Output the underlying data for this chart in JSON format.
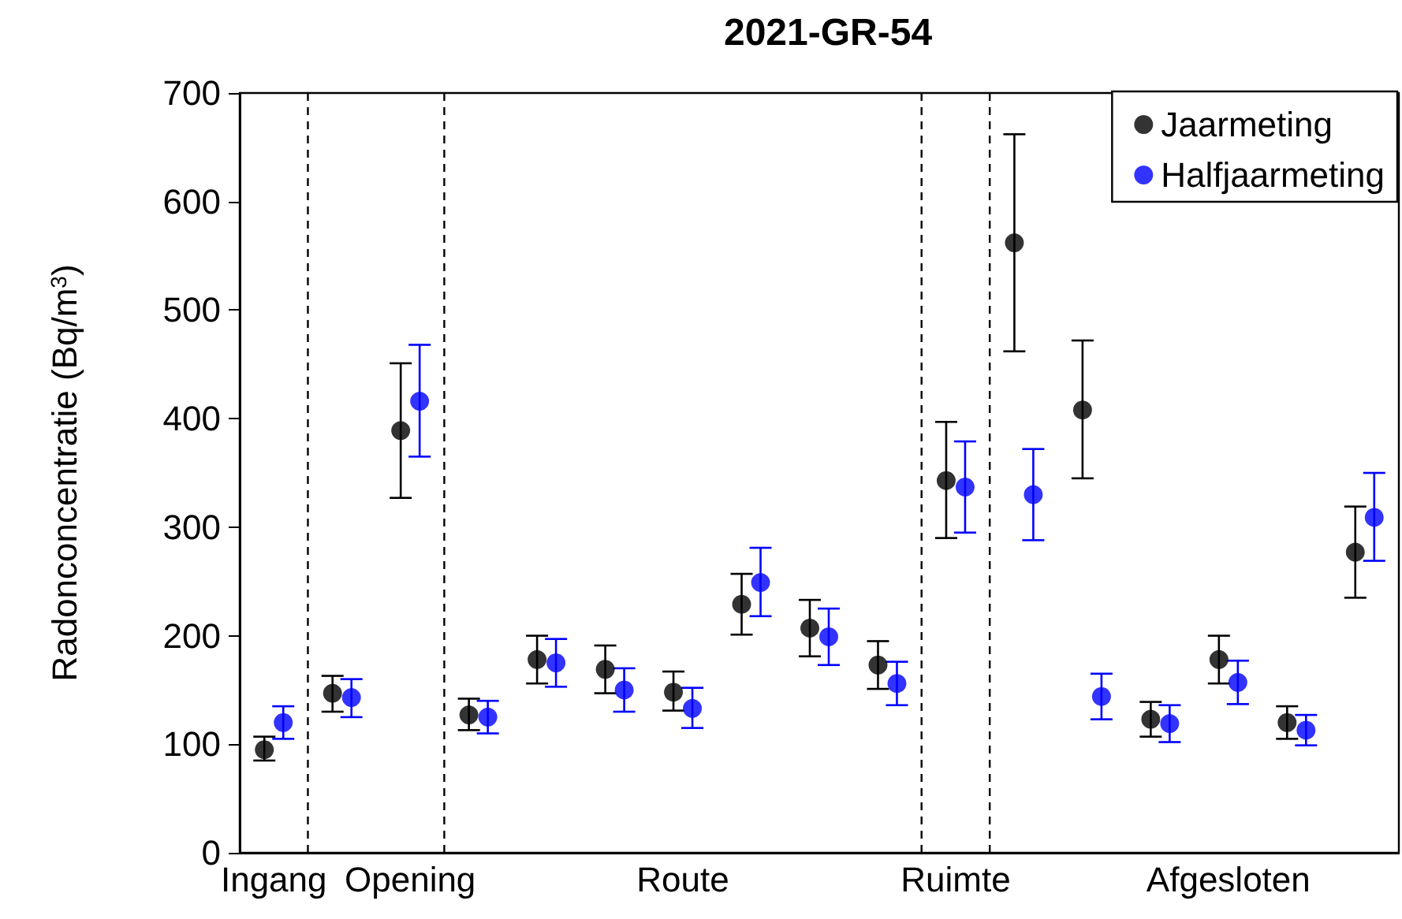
{
  "chart_data": {
    "type": "scatter",
    "title": "2021-GR-54",
    "ylabel": "Radonconcentratie (Bq/m$^{3}$)",
    "categories": [
      "Ingang",
      null,
      "Opening",
      null,
      null,
      null,
      "Route",
      null,
      null,
      null,
      "Ruimte",
      null,
      null,
      null,
      "Afgesloten",
      null,
      null
    ],
    "ylim": [
      0,
      700
    ],
    "yticks": [
      0,
      100,
      200,
      300,
      400,
      500,
      600,
      700
    ],
    "grid": false,
    "legend": "top right",
    "marker": "circle",
    "series": [
      {
        "name": "Jaarmeting",
        "color": "#000000",
        "values": [
          95,
          147,
          389,
          127,
          178,
          169,
          148,
          229,
          207,
          173,
          343,
          562,
          408,
          123,
          178,
          120,
          277
        ],
        "errors": [
          [
            85,
            107
          ],
          [
            130,
            163
          ],
          [
            327,
            451
          ],
          [
            113,
            142
          ],
          [
            156,
            200
          ],
          [
            147,
            191
          ],
          [
            131,
            167
          ],
          [
            201,
            257
          ],
          [
            181,
            233
          ],
          [
            151,
            195
          ],
          [
            290,
            397
          ],
          [
            462,
            662
          ],
          [
            345,
            472
          ],
          [
            107,
            139
          ],
          [
            156,
            200
          ],
          [
            105,
            135
          ],
          [
            235,
            319
          ]
        ]
      },
      {
        "name": "Halfjaarmeting",
        "color": "#0000ff",
        "values": [
          120,
          143,
          416,
          125,
          175,
          150,
          133,
          249,
          199,
          156,
          337,
          330,
          144,
          119,
          157,
          113,
          309
        ],
        "errors": [
          [
            105,
            135
          ],
          [
            125,
            160
          ],
          [
            365,
            468
          ],
          [
            110,
            140
          ],
          [
            153,
            197
          ],
          [
            130,
            170
          ],
          [
            115,
            152
          ],
          [
            218,
            281
          ],
          [
            173,
            225
          ],
          [
            136,
            176
          ],
          [
            295,
            379
          ],
          [
            288,
            372
          ],
          [
            123,
            165
          ],
          [
            102,
            136
          ],
          [
            137,
            177
          ],
          [
            99,
            127
          ],
          [
            269,
            350
          ]
        ]
      }
    ]
  }
}
